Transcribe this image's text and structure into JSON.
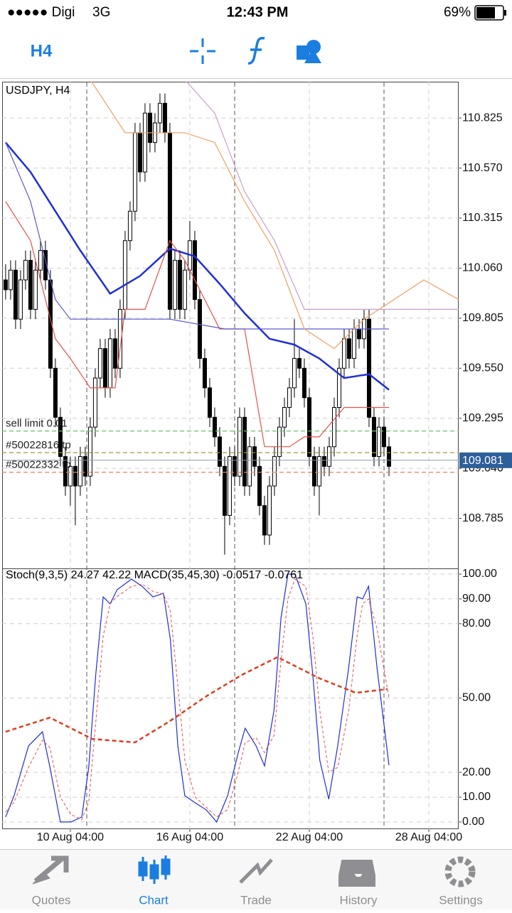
{
  "status_bar": {
    "carrier": "●●●●● Digi",
    "network": "3G",
    "time": "12:43 PM",
    "battery": "69%"
  },
  "toolbar": {
    "timeframe": "H4"
  },
  "chart_data": [
    {
      "type": "candlestick",
      "title": "USDJPY, H4",
      "xlim": [
        -0.7,
        91
      ],
      "ylim": [
        108.53,
        111.01
      ],
      "yticks": [
        110.825,
        {
          "value": 110.57,
          "label": "110.570"
        },
        110.315,
        {
          "value": 110.06,
          "label": "110.060"
        },
        109.805,
        {
          "value": 109.55,
          "label": "109.550"
        },
        109.295,
        {
          "value": 109.04,
          "label": "109.040"
        },
        108.785
      ],
      "xticks": [
        {
          "value": 13,
          "label": "10 Aug 04:00"
        },
        {
          "value": 37,
          "label": "16 Aug 04:00"
        },
        {
          "value": 61,
          "label": "22 Aug 04:00"
        },
        {
          "value": 85,
          "label": "28 Aug 04:00"
        }
      ],
      "grid": true,
      "ohlc": [
        [
          110.0,
          110.08,
          109.9,
          109.95
        ],
        [
          109.95,
          110.1,
          109.9,
          110.05
        ],
        [
          110.05,
          110.1,
          109.75,
          109.8
        ],
        [
          109.8,
          110.05,
          109.75,
          110.0
        ],
        [
          110.0,
          110.15,
          109.95,
          110.1
        ],
        [
          110.1,
          110.15,
          109.8,
          109.85
        ],
        [
          109.85,
          110.1,
          109.8,
          110.05
        ],
        [
          110.05,
          110.2,
          110.0,
          110.15
        ],
        [
          110.15,
          110.2,
          109.95,
          110.0
        ],
        [
          110.0,
          110.05,
          109.5,
          109.55
        ],
        [
          109.55,
          109.6,
          109.25,
          109.3
        ],
        [
          109.3,
          109.35,
          109.05,
          109.1
        ],
        [
          109.1,
          109.15,
          108.9,
          108.95
        ],
        [
          108.95,
          109.1,
          108.85,
          109.05
        ],
        [
          109.05,
          109.1,
          108.75,
          108.95
        ],
        [
          108.95,
          109.15,
          108.9,
          109.1
        ],
        [
          109.1,
          109.15,
          108.95,
          109.0
        ],
        [
          109.0,
          109.3,
          108.95,
          109.25
        ],
        [
          109.25,
          109.55,
          109.2,
          109.5
        ],
        [
          109.5,
          109.7,
          109.45,
          109.65
        ],
        [
          109.65,
          109.7,
          109.4,
          109.45
        ],
        [
          109.45,
          109.75,
          109.4,
          109.7
        ],
        [
          109.7,
          109.75,
          109.5,
          109.55
        ],
        [
          109.55,
          109.9,
          109.5,
          109.85
        ],
        [
          109.85,
          110.25,
          109.8,
          110.2
        ],
        [
          110.2,
          110.4,
          110.15,
          110.35
        ],
        [
          110.35,
          110.8,
          110.3,
          110.75
        ],
        [
          110.75,
          110.8,
          110.5,
          110.55
        ],
        [
          110.55,
          110.9,
          110.5,
          110.85
        ],
        [
          110.85,
          110.9,
          110.65,
          110.7
        ],
        [
          110.7,
          110.85,
          110.65,
          110.8
        ],
        [
          110.8,
          110.95,
          110.75,
          110.9
        ],
        [
          110.9,
          110.95,
          110.7,
          110.75
        ],
        [
          110.75,
          110.8,
          109.8,
          109.85
        ],
        [
          109.85,
          110.15,
          109.8,
          110.1
        ],
        [
          110.1,
          110.15,
          109.8,
          109.85
        ],
        [
          109.85,
          110.1,
          109.8,
          110.05
        ],
        [
          110.05,
          110.3,
          110.0,
          110.2
        ],
        [
          110.2,
          110.25,
          109.85,
          109.9
        ],
        [
          109.9,
          109.95,
          109.55,
          109.6
        ],
        [
          109.6,
          109.65,
          109.4,
          109.45
        ],
        [
          109.45,
          109.5,
          109.25,
          109.3
        ],
        [
          109.3,
          109.35,
          109.15,
          109.2
        ],
        [
          109.2,
          109.25,
          109.0,
          109.05
        ],
        [
          109.05,
          109.1,
          108.6,
          108.8
        ],
        [
          108.8,
          109.15,
          108.75,
          109.1
        ],
        [
          109.1,
          109.15,
          108.95,
          109.0
        ],
        [
          109.0,
          109.35,
          108.95,
          109.3
        ],
        [
          109.3,
          109.35,
          108.9,
          108.95
        ],
        [
          108.95,
          109.2,
          108.9,
          109.15
        ],
        [
          109.15,
          109.2,
          109.0,
          109.05
        ],
        [
          109.05,
          109.1,
          108.8,
          108.85
        ],
        [
          108.85,
          108.9,
          108.65,
          108.7
        ],
        [
          108.7,
          109.0,
          108.65,
          108.95
        ],
        [
          108.95,
          109.15,
          108.9,
          109.1
        ],
        [
          109.1,
          109.3,
          109.05,
          109.25
        ],
        [
          109.25,
          109.4,
          109.2,
          109.35
        ],
        [
          109.35,
          109.5,
          109.3,
          109.45
        ],
        [
          109.45,
          109.8,
          109.4,
          109.6
        ],
        [
          109.6,
          109.65,
          109.5,
          109.55
        ],
        [
          109.55,
          109.6,
          109.35,
          109.4
        ],
        [
          109.4,
          109.45,
          109.05,
          109.1
        ],
        [
          109.1,
          109.15,
          108.9,
          108.95
        ],
        [
          108.95,
          109.15,
          108.8,
          109.1
        ],
        [
          109.1,
          109.15,
          109.0,
          109.05
        ],
        [
          109.05,
          109.2,
          109.0,
          109.15
        ],
        [
          109.15,
          109.4,
          109.1,
          109.35
        ],
        [
          109.35,
          109.6,
          109.3,
          109.55
        ],
        [
          109.55,
          109.75,
          109.5,
          109.7
        ],
        [
          109.7,
          109.75,
          109.55,
          109.6
        ],
        [
          109.6,
          109.8,
          109.55,
          109.75
        ],
        [
          109.75,
          109.8,
          109.65,
          109.7
        ],
        [
          109.7,
          109.85,
          109.65,
          109.8
        ],
        [
          109.8,
          109.85,
          109.25,
          109.3
        ],
        [
          109.3,
          109.35,
          109.05,
          109.1
        ],
        [
          109.1,
          109.3,
          109.05,
          109.25
        ],
        [
          109.25,
          109.3,
          109.1,
          109.15
        ],
        [
          109.15,
          109.2,
          109.0,
          109.05
        ]
      ],
      "series": [
        {
          "color": "#1f2fd6",
          "style": "bold",
          "x": [
            0,
            5,
            10,
            15,
            21,
            27,
            33,
            38,
            43,
            48,
            53,
            58,
            63,
            68,
            73,
            77
          ],
          "values": [
            110.7,
            110.55,
            110.35,
            110.15,
            109.93,
            110.02,
            110.16,
            110.12,
            109.98,
            109.83,
            109.7,
            109.67,
            109.6,
            109.5,
            109.52,
            109.44
          ]
        },
        {
          "color": "#e8504a",
          "style": "solid",
          "x": [
            0,
            5,
            10,
            13,
            17,
            22,
            24,
            28,
            33,
            36,
            43,
            48,
            52,
            57,
            60,
            63,
            68,
            73,
            77
          ],
          "values": [
            110.4,
            110.2,
            109.7,
            109.6,
            109.45,
            109.45,
            109.85,
            109.85,
            110.2,
            110.1,
            109.75,
            109.75,
            109.15,
            109.15,
            109.2,
            109.2,
            109.35,
            109.35,
            109.35
          ]
        },
        {
          "color": "#5a5ad0",
          "style": "solid",
          "x": [
            0,
            5,
            10,
            13,
            33,
            44,
            77
          ],
          "values": [
            110.7,
            110.4,
            109.9,
            109.8,
            109.8,
            109.75,
            109.75
          ]
        },
        {
          "color": "#f0a060",
          "style": "solid",
          "x": [
            17,
            24,
            30,
            36,
            42,
            48,
            54,
            60,
            66,
            72,
            78,
            84,
            91
          ],
          "values": [
            111.02,
            110.75,
            110.75,
            110.75,
            110.7,
            110.4,
            110.15,
            109.75,
            109.65,
            109.8,
            109.9,
            110.0,
            109.9
          ]
        },
        {
          "color": "#c8a0c8",
          "style": "solid",
          "x": [
            17,
            30,
            36,
            42,
            48,
            54,
            60,
            66,
            72,
            78,
            84,
            91
          ],
          "values": [
            111.02,
            111.02,
            111.02,
            110.85,
            110.45,
            110.2,
            109.85,
            109.85,
            109.85,
            109.85,
            109.85,
            109.85
          ]
        }
      ],
      "levels": [
        {
          "name": "sell limit 0.01",
          "value": 109.23,
          "color": "#6cc070"
        },
        {
          "name": "#50022816 tp",
          "value": 109.12,
          "color": "#a09a30"
        },
        {
          "name": "#50022332 tp",
          "value": 109.02,
          "color": "#f08060"
        }
      ],
      "current_price": 109.081
    },
    {
      "type": "line",
      "title": "Stoch(9,3,5) 24.27 42.22 MACD(35,45,30) -0.0517 -0.0761",
      "xlim": [
        -0.7,
        91
      ],
      "ylim": [
        -2.9,
        102.3
      ],
      "yticks": [
        {
          "value": 100,
          "label": "100.00"
        },
        {
          "value": 90,
          "label": "90.00"
        },
        {
          "value": 80,
          "label": "80.00"
        },
        {
          "value": 50,
          "label": "50.00"
        },
        {
          "value": 20,
          "label": "20.00"
        },
        {
          "value": 10,
          "label": "10.00"
        },
        {
          "value": 0,
          "label": "0.00"
        }
      ],
      "grid": true,
      "series": [
        {
          "color": "#1f2fd6",
          "style": "solid",
          "x": [
            0,
            1.7,
            4.6,
            7.4,
            8.9,
            11,
            13.1,
            15.3,
            16.7,
            18.1,
            19.6,
            21,
            22.4,
            25.3,
            27.4,
            29.6,
            31.7,
            33.1,
            34.6,
            36,
            38.1,
            40.3,
            42.4,
            44.6,
            46.7,
            48.1,
            50.3,
            52,
            53.9,
            55.3,
            56.7,
            58.1,
            60.3,
            61.7,
            63.1,
            64.9,
            66.7,
            68.9,
            70.6,
            71.7,
            72.9,
            74.6,
            77
          ],
          "values": [
            2.0,
            10.6,
            30.7,
            36.4,
            22.1,
            0,
            0,
            2.0,
            22.1,
            59.3,
            90.8,
            88.0,
            93.7,
            98.0,
            95.1,
            90.8,
            92.3,
            73.6,
            30.7,
            10.6,
            7.7,
            4.9,
            0,
            10.6,
            27.8,
            37.8,
            30.7,
            22.6,
            45.0,
            82.2,
            100,
            100,
            88.0,
            59.3,
            24.9,
            9.2,
            30.7,
            62.2,
            90.8,
            90.0,
            95.1,
            62.2,
            22.9
          ]
        },
        {
          "color": "#e8504a",
          "style": "dashed",
          "x": [
            0,
            1.7,
            4.6,
            7.4,
            8.9,
            11,
            13.1,
            15.3,
            16.7,
            18.1,
            19.6,
            21,
            22.4,
            25.3,
            27.4,
            29.6,
            31.7,
            33.1,
            34.6,
            36,
            38.1,
            40.3,
            42.4,
            44.6,
            46.7,
            48.1,
            50.3,
            52,
            53.9,
            55.3,
            56.7,
            58.1,
            60.3,
            61.7,
            63.1,
            64.9,
            66.7,
            68.9,
            70.6,
            71.7,
            72.9,
            74.6,
            77
          ],
          "values": [
            4,
            8,
            22,
            33,
            30,
            10,
            3,
            1,
            8,
            40,
            75,
            88,
            91,
            95,
            96,
            93,
            92,
            85,
            55,
            25,
            10,
            6,
            2,
            5,
            20,
            32,
            34,
            28,
            35,
            65,
            90,
            98,
            95,
            75,
            45,
            20,
            22,
            45,
            75,
            88,
            90,
            78,
            50
          ]
        },
        {
          "color": "#e03c1e",
          "style": "bold-dashed",
          "x": [
            0,
            8.9,
            17.4,
            26,
            33,
            40.3,
            47.4,
            54.6,
            63.1,
            70.3,
            76.7
          ],
          "values": [
            36.4,
            42.1,
            33.5,
            32.1,
            40.7,
            50.7,
            59.3,
            66.5,
            57.9,
            52.1,
            53.6
          ]
        }
      ]
    }
  ],
  "tab_bar": {
    "tabs": [
      "Quotes",
      "Chart",
      "Trade",
      "History",
      "Settings"
    ]
  }
}
